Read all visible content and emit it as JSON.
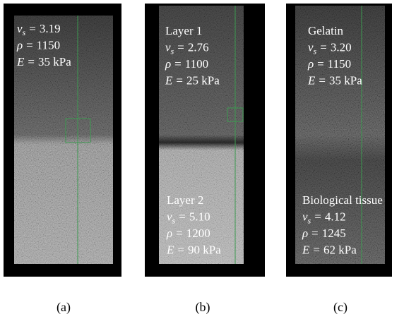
{
  "panels": [
    {
      "caption": "(a)",
      "groups": [
        {
          "params": [
            {
              "symbol": "v",
              "subscript": "s",
              "relation": "=",
              "value": "3.19"
            },
            {
              "symbol": "ρ",
              "relation": "=",
              "value": "1150"
            },
            {
              "symbol": "E",
              "relation": "=",
              "value": "35 kPa"
            }
          ]
        }
      ]
    },
    {
      "caption": "(b)",
      "groups": [
        {
          "label": "Layer 1",
          "params": [
            {
              "symbol": "v",
              "subscript": "s",
              "relation": "=",
              "value": "2.76"
            },
            {
              "symbol": "ρ",
              "relation": "=",
              "value": "1100"
            },
            {
              "symbol": "E",
              "relation": "=",
              "value": "25 kPa"
            }
          ]
        },
        {
          "label": "Layer 2",
          "params": [
            {
              "symbol": "v",
              "subscript": "s",
              "relation": "=",
              "value": "5.10"
            },
            {
              "symbol": "ρ",
              "relation": "=",
              "value": "1200"
            },
            {
              "symbol": "E",
              "relation": "=",
              "value": "90 kPa"
            }
          ]
        }
      ]
    },
    {
      "caption": "(c)",
      "groups": [
        {
          "label": "Gelatin",
          "params": [
            {
              "symbol": "v",
              "subscript": "s",
              "relation": "=",
              "value": "3.20"
            },
            {
              "symbol": "ρ",
              "relation": "=",
              "value": "1150"
            },
            {
              "symbol": "E",
              "relation": "=",
              "value": "35 kPa"
            }
          ]
        },
        {
          "label": "Biological tissue",
          "params": [
            {
              "symbol": "v",
              "subscript": "s",
              "relation": "=",
              "value": "4.12"
            },
            {
              "symbol": "ρ",
              "relation": "=",
              "value": "1245"
            },
            {
              "symbol": "E",
              "relation": "=",
              "value": "62 kPa"
            }
          ]
        }
      ]
    }
  ]
}
